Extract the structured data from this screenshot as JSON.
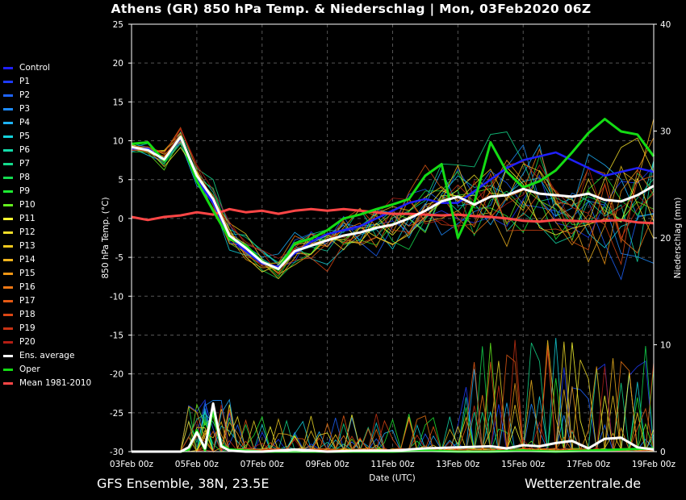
{
  "header": {
    "title": "Athens  (GR)  850 hPa Temp. & Niederschlag | Mon, 03Feb2020 06Z"
  },
  "footer": {
    "model": "GFS Ensemble, 38N, 23.5E",
    "source": "Wetterzentrale.de"
  },
  "chart_data": {
    "type": "line",
    "title": "Athens  (GR)  850 hPa Temp. & Niederschlag | Mon, 03Feb2020 06Z",
    "xlabel": "Date (UTC)",
    "ylabel": "850 hPa Temp. (°C)",
    "y2label": "Niederschlag (mm)",
    "ylim": [
      -30,
      25
    ],
    "y2lim": [
      0,
      40
    ],
    "x_range_days": [
      0,
      16
    ],
    "x_ticks": [
      "03Feb 00z",
      "05Feb 00z",
      "07Feb 00z",
      "09Feb 00z",
      "11Feb 00z",
      "13Feb 00z",
      "15Feb 00z",
      "17Feb 00z",
      "19Feb 00z"
    ],
    "y_ticks": [
      "25",
      "20",
      "15",
      "10",
      "5",
      "0",
      "-5",
      "-10",
      "-15",
      "-20",
      "-25",
      "-30"
    ],
    "y2_ticks": [
      "40",
      "30",
      "20",
      "10",
      "0"
    ],
    "grid": true,
    "legend_position": "left",
    "legend": [
      {
        "name": "Control",
        "color": "#2020ff"
      },
      {
        "name": "P1",
        "color": "#1e3cff"
      },
      {
        "name": "P2",
        "color": "#1e64ff"
      },
      {
        "name": "P3",
        "color": "#1e8cff"
      },
      {
        "name": "P4",
        "color": "#1eb4ff"
      },
      {
        "name": "P5",
        "color": "#14d2dc"
      },
      {
        "name": "P6",
        "color": "#14dcaa"
      },
      {
        "name": "P7",
        "color": "#14dc8c"
      },
      {
        "name": "P8",
        "color": "#14dc50"
      },
      {
        "name": "P9",
        "color": "#1eeb32"
      },
      {
        "name": "P10",
        "color": "#64f01e"
      },
      {
        "name": "P11",
        "color": "#ffff32"
      },
      {
        "name": "P12",
        "color": "#f0dc28"
      },
      {
        "name": "P13",
        "color": "#f0c81e"
      },
      {
        "name": "P14",
        "color": "#f0b41e"
      },
      {
        "name": "P15",
        "color": "#f09614"
      },
      {
        "name": "P16",
        "color": "#f07814"
      },
      {
        "name": "P17",
        "color": "#e65a14"
      },
      {
        "name": "P18",
        "color": "#dc4614"
      },
      {
        "name": "P19",
        "color": "#c83214"
      },
      {
        "name": "P20",
        "color": "#b41e14"
      },
      {
        "name": "Ens. average",
        "color": "#ffffff"
      },
      {
        "name": "Oper",
        "color": "#14dc14"
      },
      {
        "name": "Mean 1981-2010",
        "color": "#ff4646"
      }
    ],
    "series": [
      {
        "name": "Ens. average",
        "x_days": [
          0,
          0.5,
          1,
          1.5,
          2,
          2.5,
          3,
          3.5,
          4,
          4.5,
          5,
          5.5,
          6,
          6.5,
          7,
          7.5,
          8,
          8.5,
          9,
          9.5,
          10,
          10.5,
          11,
          11.5,
          12,
          12.5,
          13,
          13.5,
          14,
          14.5,
          15,
          15.5,
          16
        ],
        "values": [
          9.2,
          8.8,
          7.6,
          10.5,
          5.5,
          2.5,
          -2.2,
          -3.8,
          -5.6,
          -6.5,
          -4.2,
          -3.5,
          -2.8,
          -2.2,
          -1.8,
          -1.2,
          -0.8,
          0.0,
          1.0,
          2.2,
          2.8,
          1.8,
          2.8,
          3.0,
          3.8,
          3.2,
          3.0,
          2.8,
          3.2,
          2.4,
          2.2,
          3.0,
          4.2
        ]
      },
      {
        "name": "Oper",
        "x_days": [
          0,
          0.5,
          1,
          1.5,
          2,
          2.5,
          3,
          3.5,
          4,
          4.5,
          5,
          5.5,
          6,
          6.5,
          7,
          7.5,
          8,
          8.5,
          9,
          9.5,
          10,
          10.5,
          11,
          11.5,
          12,
          12.5,
          13,
          13.5,
          14,
          14.5,
          15,
          15.5,
          16
        ],
        "values": [
          9.6,
          9.8,
          7.4,
          10.5,
          4.8,
          1.0,
          -2.6,
          -3.5,
          -5.5,
          -6.6,
          -3.2,
          -2.6,
          -1.5,
          0.0,
          0.5,
          1.2,
          1.8,
          2.5,
          5.5,
          7.0,
          -2.5,
          2.0,
          9.8,
          6.0,
          4.0,
          4.8,
          6.2,
          8.5,
          11.0,
          12.8,
          11.2,
          10.8,
          8.0
        ]
      },
      {
        "name": "Control",
        "x_days": [
          0,
          0.5,
          1,
          1.5,
          2,
          2.5,
          3,
          3.5,
          4,
          4.5,
          5,
          5.5,
          6,
          6.5,
          7,
          7.5,
          8,
          8.5,
          9,
          9.5,
          10,
          10.5,
          11,
          11.5,
          12,
          12.5,
          13,
          13.5,
          14,
          14.5,
          15,
          15.5,
          16
        ],
        "values": [
          9.0,
          9.0,
          7.5,
          10.3,
          5.0,
          2.0,
          -2.4,
          -4.2,
          -5.8,
          -6.2,
          -4.5,
          -3.0,
          -2.0,
          -1.5,
          -1.0,
          0.0,
          1.0,
          2.0,
          2.5,
          2.0,
          2.0,
          3.5,
          5.0,
          6.5,
          7.5,
          8.0,
          8.5,
          7.5,
          6.5,
          5.5,
          6.0,
          6.5,
          6.0
        ]
      },
      {
        "name": "Mean 1981-2010",
        "x_days": [
          0,
          0.5,
          1,
          1.5,
          2,
          2.5,
          3,
          3.5,
          4,
          4.5,
          5,
          5.5,
          6,
          6.5,
          7,
          7.5,
          8,
          8.5,
          9,
          9.5,
          10,
          10.5,
          11,
          11.5,
          12,
          12.5,
          13,
          13.5,
          14,
          14.5,
          15,
          15.5,
          16
        ],
        "values": [
          0.2,
          -0.2,
          0.2,
          0.4,
          0.8,
          0.5,
          1.2,
          0.8,
          1.0,
          0.6,
          1.0,
          1.2,
          1.0,
          1.2,
          1.0,
          0.8,
          0.6,
          0.6,
          0.5,
          0.4,
          0.5,
          0.3,
          0.2,
          0.0,
          -0.3,
          -0.4,
          -0.2,
          -0.3,
          -0.4,
          -0.3,
          -0.2,
          -0.5,
          -0.6
        ]
      },
      {
        "name": "Niederschlag Ens. average",
        "axis": "y2",
        "x_days": [
          0,
          1,
          1.5,
          1.75,
          2,
          2.25,
          2.5,
          2.75,
          3,
          3.5,
          4,
          4.5,
          5,
          6,
          7,
          8,
          9,
          10,
          11,
          11.5,
          12,
          12.5,
          13,
          13.5,
          14,
          14.5,
          15,
          15.5,
          16
        ],
        "values": [
          0,
          0,
          0,
          0.4,
          1.8,
          0.3,
          4.5,
          0.5,
          0.1,
          0,
          0,
          0.1,
          0.2,
          0,
          0.1,
          0.1,
          0.3,
          0.4,
          0.5,
          0.3,
          0.6,
          0.5,
          0.8,
          1.0,
          0.3,
          1.2,
          1.3,
          0.4,
          0.2
        ]
      },
      {
        "name": "Niederschlag Oper",
        "axis": "y2",
        "x_days": [
          0,
          1,
          1.5,
          1.75,
          2,
          2.25,
          2.5,
          2.75,
          3,
          4,
          5,
          6,
          7,
          8,
          9,
          10,
          11,
          12,
          13,
          14,
          15,
          16
        ],
        "values": [
          0,
          0,
          0,
          0.2,
          2.0,
          0.1,
          4.0,
          0.6,
          0.2,
          0,
          0,
          0,
          0,
          0,
          0.1,
          0,
          0,
          0.1,
          0,
          0.1,
          0.2,
          0.3
        ]
      }
    ]
  }
}
